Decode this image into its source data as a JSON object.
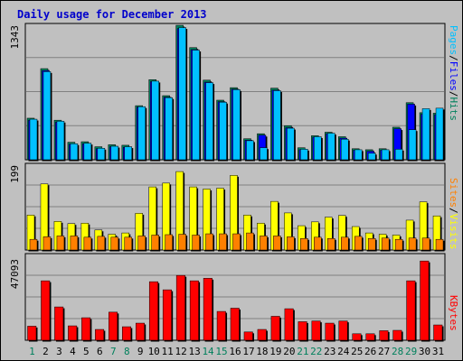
{
  "title": "Daily usage for December 2013",
  "colors": {
    "background": "#C0C0C0",
    "frame": "#000000",
    "grid": "#808080",
    "title": "#0000CC",
    "hits": "#00805C",
    "files": "#0000FF",
    "pages": "#00C0FF",
    "visits": "#FFFF00",
    "sites": "#FF8000",
    "kbytes": "#FF0000",
    "weekend_day": "#00805C",
    "weekday": "#000000"
  },
  "labels": {
    "hits": "Hits",
    "files": "Files",
    "pages": "Pages",
    "visits": "Visits",
    "sites": "Sites",
    "kbytes": "KBytes",
    "sep": "/"
  },
  "chart_data": [
    {
      "type": "bar",
      "title": "Daily usage for December 2013",
      "scale_max": "1343",
      "ylim": [
        0,
        1343
      ],
      "categories": [
        "1",
        "2",
        "3",
        "4",
        "5",
        "6",
        "7",
        "8",
        "9",
        "10",
        "11",
        "12",
        "13",
        "14",
        "15",
        "16",
        "17",
        "18",
        "19",
        "20",
        "21",
        "22",
        "23",
        "24",
        "25",
        "26",
        "27",
        "28",
        "29",
        "30",
        "31"
      ],
      "weekend_days": [
        "1",
        "7",
        "8",
        "14",
        "15",
        "21",
        "22",
        "28",
        "29"
      ],
      "series": [
        {
          "name": "Hits",
          "values": [
            415,
            910,
            395,
            175,
            180,
            130,
            150,
            145,
            540,
            800,
            640,
            1343,
            1120,
            795,
            595,
            720,
            210,
            260,
            715,
            340,
            120,
            240,
            275,
            230,
            110,
            100,
            110,
            325,
            570,
            470,
            465
          ]
        },
        {
          "name": "Files",
          "values": [
            395,
            890,
            375,
            155,
            160,
            110,
            130,
            125,
            525,
            780,
            625,
            1310,
            1100,
            775,
            580,
            705,
            195,
            245,
            695,
            320,
            100,
            225,
            260,
            215,
            95,
            85,
            95,
            310,
            555,
            455,
            450
          ]
        },
        {
          "name": "Pages",
          "values": [
            405,
            880,
            385,
            160,
            165,
            115,
            135,
            130,
            530,
            785,
            620,
            1320,
            1095,
            770,
            575,
            700,
            190,
            120,
            690,
            315,
            105,
            230,
            265,
            205,
            100,
            65,
            100,
            105,
            300,
            510,
            515
          ]
        }
      ]
    },
    {
      "type": "bar",
      "scale_max": "199",
      "ylim": [
        0,
        199
      ],
      "categories": [
        "1",
        "2",
        "3",
        "4",
        "5",
        "6",
        "7",
        "8",
        "9",
        "10",
        "11",
        "12",
        "13",
        "14",
        "15",
        "16",
        "17",
        "18",
        "19",
        "20",
        "21",
        "22",
        "23",
        "24",
        "25",
        "26",
        "27",
        "28",
        "29",
        "30",
        "31"
      ],
      "series": [
        {
          "name": "Visits",
          "values": [
            82,
            155,
            67,
            62,
            63,
            47,
            37,
            40,
            86,
            148,
            157,
            184,
            148,
            143,
            145,
            175,
            82,
            63,
            114,
            87,
            57,
            66,
            77,
            81,
            55,
            40,
            37,
            35,
            70,
            113,
            80
          ]
        },
        {
          "name": "Sites",
          "values": [
            25,
            31,
            33,
            33,
            30,
            32,
            30,
            30,
            33,
            35,
            36,
            37,
            35,
            38,
            38,
            38,
            40,
            33,
            33,
            31,
            27,
            30,
            27,
            30,
            32,
            27,
            28,
            25,
            28,
            28,
            25
          ]
        }
      ]
    },
    {
      "type": "bar",
      "scale_max": "47093",
      "ylim": [
        0,
        47093
      ],
      "categories": [
        "1",
        "2",
        "3",
        "4",
        "5",
        "6",
        "7",
        "8",
        "9",
        "10",
        "11",
        "12",
        "13",
        "14",
        "15",
        "16",
        "17",
        "18",
        "19",
        "20",
        "21",
        "22",
        "23",
        "24",
        "25",
        "26",
        "27",
        "28",
        "29",
        "30",
        "31"
      ],
      "series": [
        {
          "name": "KBytes",
          "values": [
            7800,
            33000,
            18500,
            8000,
            12500,
            6000,
            15600,
            7500,
            9500,
            32500,
            28000,
            36000,
            33000,
            34400,
            16000,
            17800,
            4600,
            6000,
            13300,
            17500,
            10300,
            10700,
            9500,
            10700,
            3600,
            3600,
            5300,
            5500,
            33000,
            44000,
            8500
          ]
        }
      ]
    }
  ]
}
